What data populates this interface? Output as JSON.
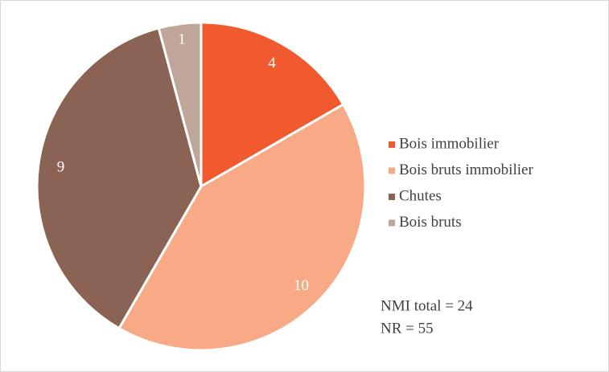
{
  "chart_data": {
    "type": "pie",
    "categories": [
      "Bois immobilier",
      "Bois bruts immobilier",
      "Chutes",
      "Bois bruts"
    ],
    "values": [
      4,
      10,
      9,
      1
    ],
    "colors": [
      "#f15a2e",
      "#f8aa86",
      "#8b6355",
      "#c0a599"
    ],
    "annotations": [
      "NMI total = 24",
      "NR = 55"
    ]
  }
}
